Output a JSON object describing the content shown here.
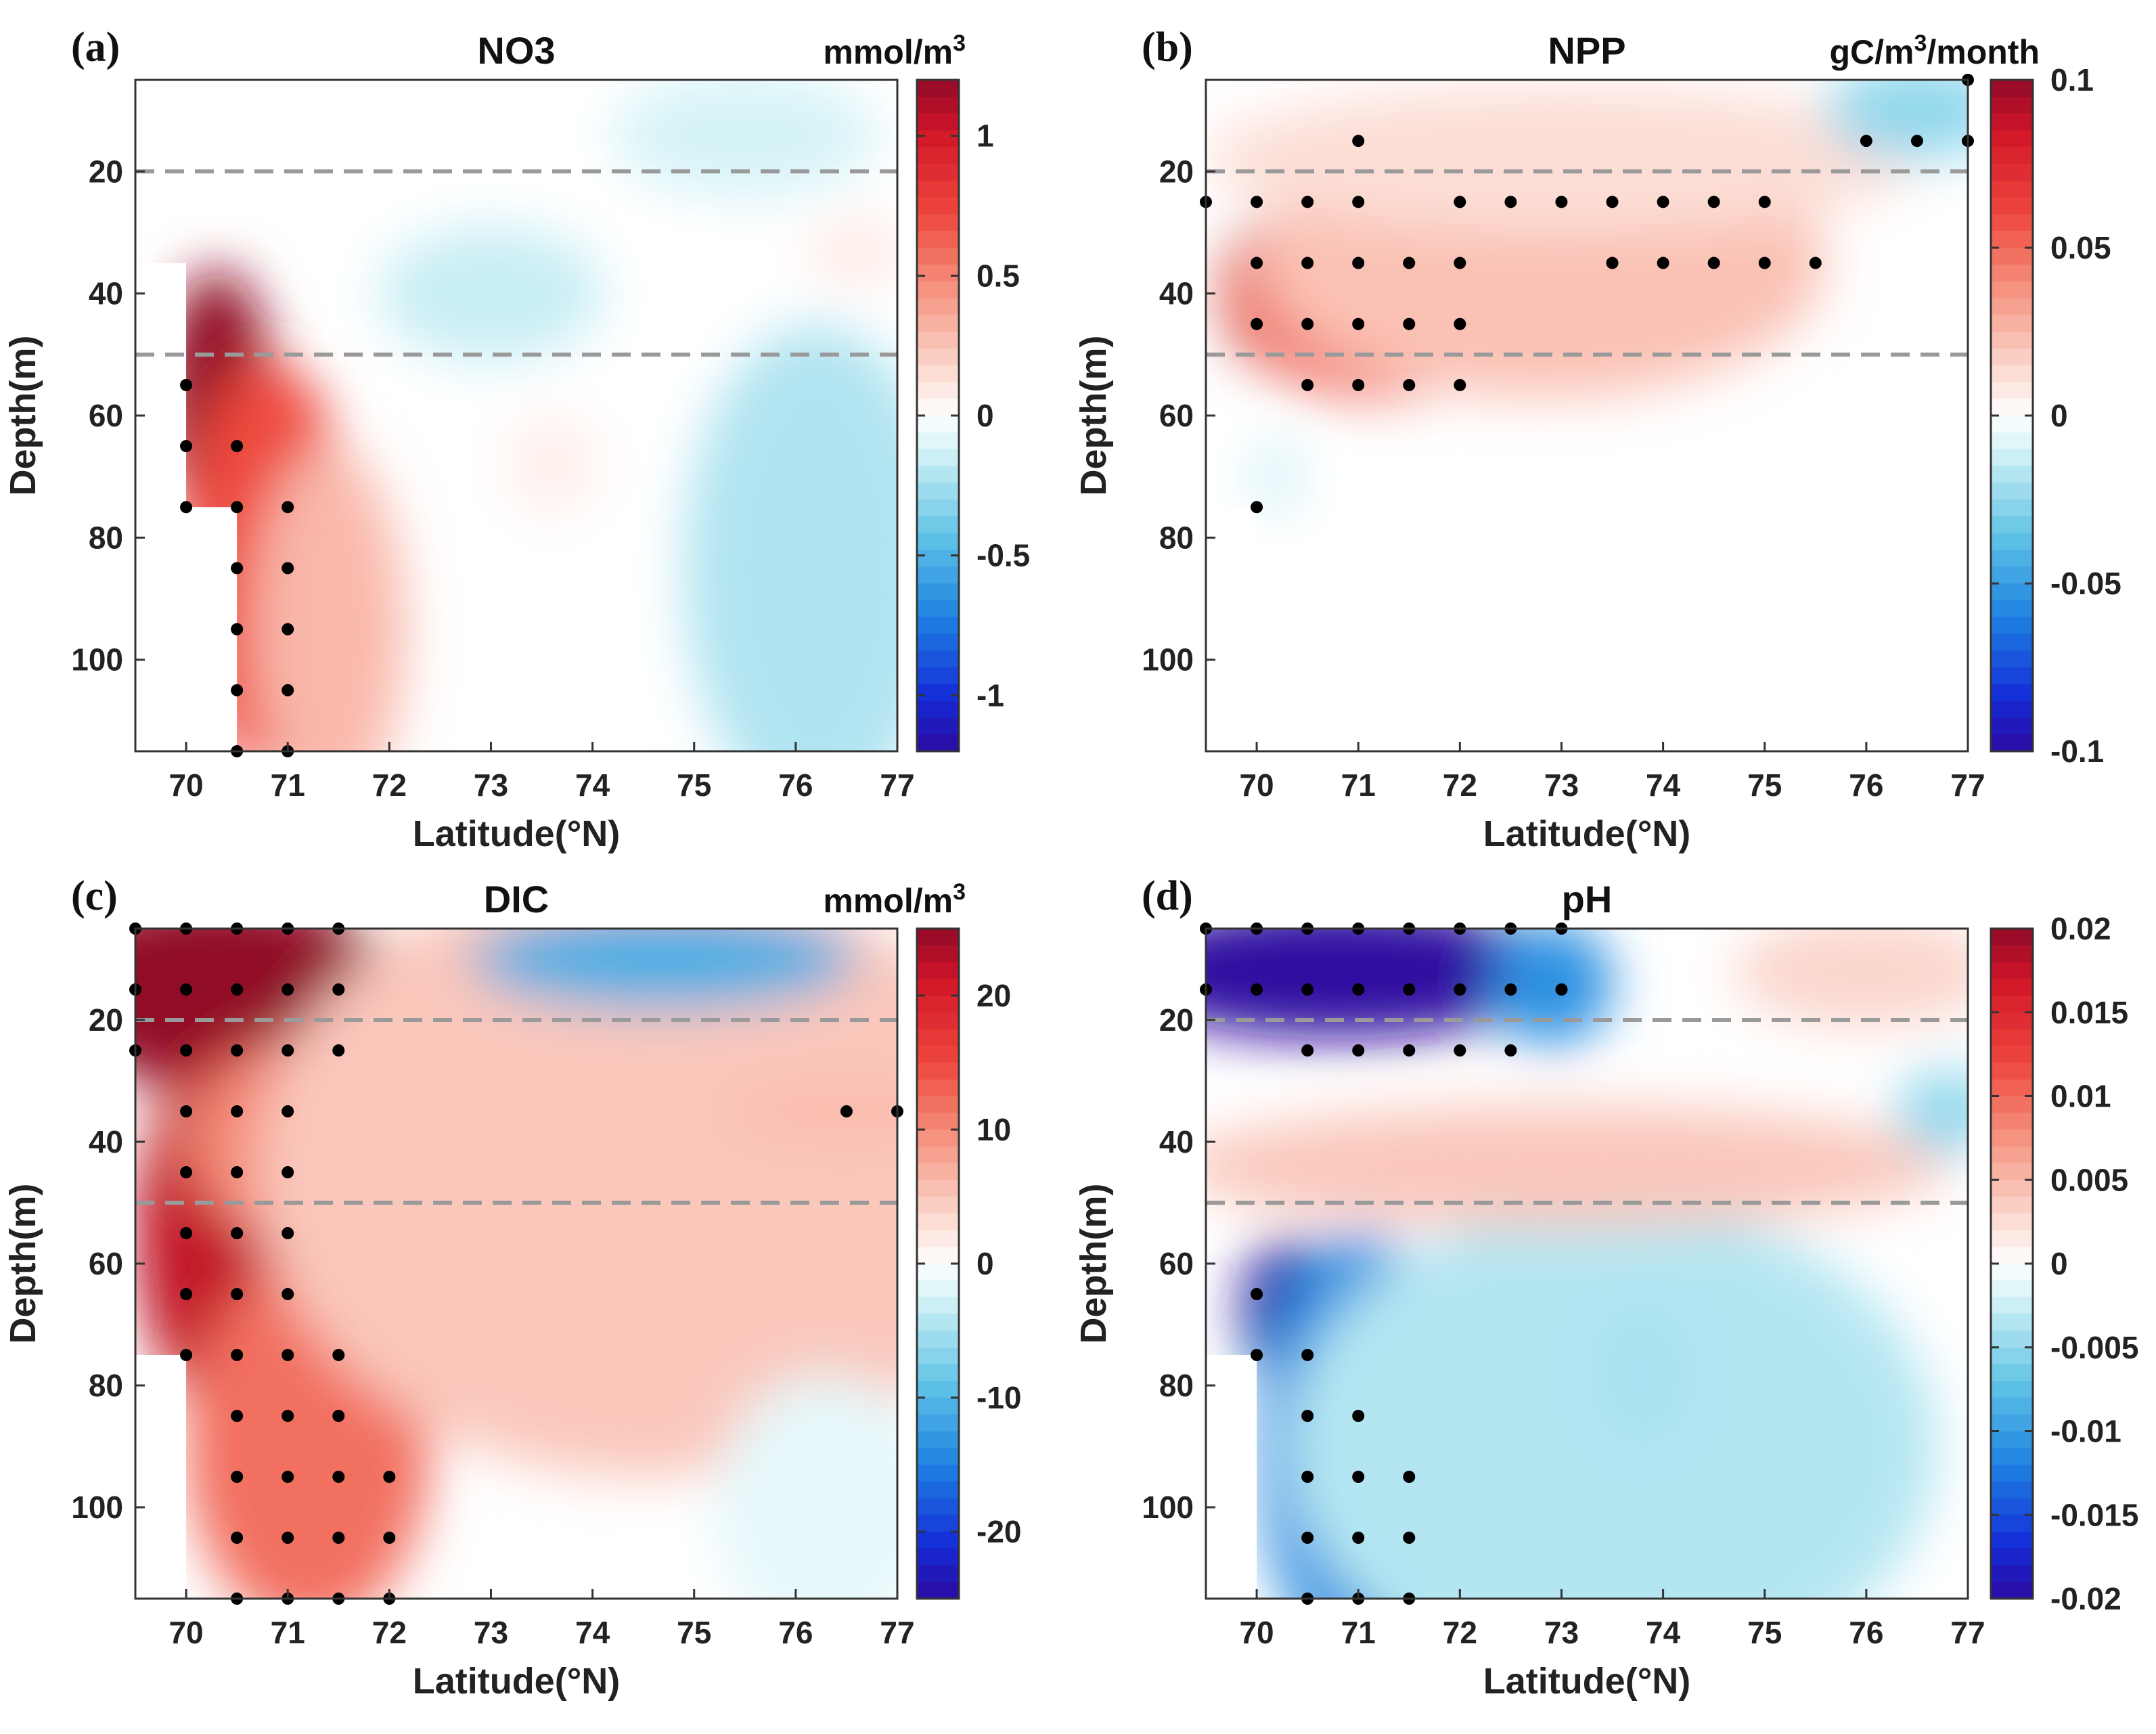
{
  "chart_data": [
    {
      "type": "heatmap",
      "panel": "(a)",
      "title": "NO3",
      "unit": "mmol/m",
      "unit_sup": "3",
      "unit_tail": "",
      "xlabel": "Latitude(°N)",
      "ylabel": "Depth(m)",
      "xlim": [
        69.5,
        77
      ],
      "ylim": [
        5,
        115
      ],
      "y_reversed": true,
      "xticks": [
        70,
        71,
        72,
        73,
        74,
        75,
        76,
        77
      ],
      "yticks": [
        20,
        40,
        60,
        80,
        100
      ],
      "clim": [
        -1.2,
        1.2
      ],
      "cticks": [
        1,
        0.5,
        0,
        -0.5,
        -1
      ],
      "colormap": "blue-white-red",
      "dashed_depths": [
        20,
        50
      ],
      "mask_steps": [
        [
          5,
          69.5
        ],
        [
          35,
          70
        ],
        [
          75,
          70.5
        ]
      ],
      "blobs": [
        {
          "lat": 70.3,
          "depth": 58,
          "rx": 0.55,
          "ry": 22,
          "value": 1.25
        },
        {
          "lat": 70.8,
          "depth": 85,
          "rx": 0.85,
          "ry": 34,
          "value": 0.72
        },
        {
          "lat": 71.4,
          "depth": 95,
          "rx": 0.75,
          "ry": 30,
          "value": 0.3
        },
        {
          "lat": 73.0,
          "depth": 40,
          "rx": 1.1,
          "ry": 11,
          "value": -0.16
        },
        {
          "lat": 75.5,
          "depth": 14,
          "rx": 1.3,
          "ry": 10,
          "value": -0.12
        },
        {
          "lat": 76.2,
          "depth": 85,
          "rx": 1.3,
          "ry": 40,
          "value": -0.22
        },
        {
          "lat": 73.6,
          "depth": 68,
          "rx": 0.45,
          "ry": 8,
          "value": 0.07
        },
        {
          "lat": 76.6,
          "depth": 33,
          "rx": 0.45,
          "ry": 5,
          "value": 0.1
        }
      ],
      "significance_points": [
        [
          70,
          55
        ],
        [
          70,
          65
        ],
        [
          70,
          75
        ],
        [
          70.5,
          65
        ],
        [
          70.5,
          75
        ],
        [
          70.5,
          85
        ],
        [
          70.5,
          95
        ],
        [
          70.5,
          105
        ],
        [
          70.5,
          115
        ],
        [
          71,
          75
        ],
        [
          71,
          85
        ],
        [
          71,
          95
        ],
        [
          71,
          105
        ],
        [
          71,
          115
        ]
      ]
    },
    {
      "type": "heatmap",
      "panel": "(b)",
      "title": "NPP",
      "unit": "gC/m",
      "unit_sup": "3",
      "unit_tail": "/month",
      "xlabel": "Latitude(°N)",
      "ylabel": "Depth(m)",
      "xlim": [
        69.5,
        77
      ],
      "ylim": [
        5,
        115
      ],
      "y_reversed": true,
      "xticks": [
        70,
        71,
        72,
        73,
        74,
        75,
        76,
        77
      ],
      "yticks": [
        20,
        40,
        60,
        80,
        100
      ],
      "clim": [
        -0.1,
        0.1
      ],
      "cticks": [
        0.1,
        0.05,
        0,
        -0.05,
        -0.1
      ],
      "colormap": "blue-white-red",
      "dashed_depths": [
        20,
        50
      ],
      "mask_steps": [
        [
          25,
          69.5
        ],
        [
          75,
          70
        ]
      ],
      "blobs": [
        {
          "lat": 70.2,
          "depth": 40,
          "rx": 0.55,
          "ry": 12,
          "value": 0.11
        },
        {
          "lat": 71.2,
          "depth": 40,
          "rx": 1.5,
          "ry": 17,
          "value": 0.05
        },
        {
          "lat": 72.8,
          "depth": 35,
          "rx": 2.8,
          "ry": 22,
          "value": 0.022
        },
        {
          "lat": 73.0,
          "depth": 18,
          "rx": 3.5,
          "ry": 12,
          "value": 0.012
        },
        {
          "lat": 76.5,
          "depth": 10,
          "rx": 0.9,
          "ry": 8,
          "value": -0.025
        },
        {
          "lat": 70.2,
          "depth": 70,
          "rx": 0.25,
          "ry": 6,
          "value": -0.01
        }
      ],
      "significance_points": [
        [
          69.5,
          25
        ],
        [
          70,
          25
        ],
        [
          70.5,
          25
        ],
        [
          71,
          25
        ],
        [
          72,
          25
        ],
        [
          72.5,
          25
        ],
        [
          73,
          25
        ],
        [
          73.5,
          25
        ],
        [
          74,
          25
        ],
        [
          74.5,
          25
        ],
        [
          75,
          25
        ],
        [
          70,
          35
        ],
        [
          70.5,
          35
        ],
        [
          71,
          35
        ],
        [
          71.5,
          35
        ],
        [
          72,
          35
        ],
        [
          73.5,
          35
        ],
        [
          74,
          35
        ],
        [
          74.5,
          35
        ],
        [
          75,
          35
        ],
        [
          75.5,
          35
        ],
        [
          70,
          45
        ],
        [
          70.5,
          45
        ],
        [
          71,
          45
        ],
        [
          71.5,
          45
        ],
        [
          72,
          45
        ],
        [
          70.5,
          55
        ],
        [
          71,
          55
        ],
        [
          71.5,
          55
        ],
        [
          72,
          55
        ],
        [
          71,
          15
        ],
        [
          76,
          15
        ],
        [
          76.5,
          15
        ],
        [
          77,
          15
        ],
        [
          77,
          5
        ],
        [
          70,
          75
        ]
      ]
    },
    {
      "type": "heatmap",
      "panel": "(c)",
      "title": "DIC",
      "unit": "mmol/m",
      "unit_sup": "3",
      "unit_tail": "",
      "xlabel": "Latitude(°N)",
      "ylabel": "Depth(m)",
      "xlim": [
        69.5,
        77
      ],
      "ylim": [
        5,
        115
      ],
      "y_reversed": true,
      "xticks": [
        70,
        71,
        72,
        73,
        74,
        75,
        76,
        77
      ],
      "yticks": [
        20,
        40,
        60,
        80,
        100
      ],
      "clim": [
        -25,
        25
      ],
      "cticks": [
        20,
        10,
        0,
        -10,
        -20
      ],
      "colormap": "blue-white-red",
      "dashed_depths": [
        20,
        50
      ],
      "mask_steps": [
        [
          25,
          69.5
        ],
        [
          75,
          70
        ]
      ],
      "blobs": [
        {
          "lat": 70.3,
          "depth": 15,
          "rx": 1.8,
          "ry": 16,
          "value": 30
        },
        {
          "lat": 70.4,
          "depth": 55,
          "rx": 0.9,
          "ry": 30,
          "value": 22
        },
        {
          "lat": 71.2,
          "depth": 90,
          "rx": 1.2,
          "ry": 30,
          "value": 12
        },
        {
          "lat": 72.0,
          "depth": 40,
          "rx": 2.0,
          "ry": 20,
          "value": 10
        },
        {
          "lat": 74.5,
          "depth": 45,
          "rx": 3.8,
          "ry": 50,
          "value": 5
        },
        {
          "lat": 76.5,
          "depth": 35,
          "rx": 1.2,
          "ry": 5,
          "value": 6
        },
        {
          "lat": 74.7,
          "depth": 10,
          "rx": 1.9,
          "ry": 8,
          "value": -11
        },
        {
          "lat": 76.3,
          "depth": 100,
          "rx": 1.1,
          "ry": 22,
          "value": -1.5
        }
      ],
      "significance_points": [
        [
          69.5,
          5
        ],
        [
          70,
          5
        ],
        [
          70.5,
          5
        ],
        [
          71,
          5
        ],
        [
          71.5,
          5
        ],
        [
          69.5,
          15
        ],
        [
          70,
          15
        ],
        [
          70.5,
          15
        ],
        [
          71,
          15
        ],
        [
          71.5,
          15
        ],
        [
          69.5,
          25
        ],
        [
          70,
          25
        ],
        [
          70.5,
          25
        ],
        [
          71,
          25
        ],
        [
          71.5,
          25
        ],
        [
          70,
          35
        ],
        [
          70.5,
          35
        ],
        [
          71,
          35
        ],
        [
          70,
          45
        ],
        [
          70.5,
          45
        ],
        [
          71,
          45
        ],
        [
          70,
          55
        ],
        [
          70.5,
          55
        ],
        [
          71,
          55
        ],
        [
          70,
          65
        ],
        [
          70.5,
          65
        ],
        [
          71,
          65
        ],
        [
          70,
          75
        ],
        [
          70.5,
          75
        ],
        [
          71,
          75
        ],
        [
          71.5,
          75
        ],
        [
          70.5,
          85
        ],
        [
          71,
          85
        ],
        [
          71.5,
          85
        ],
        [
          70.5,
          95
        ],
        [
          71,
          95
        ],
        [
          71.5,
          95
        ],
        [
          72,
          95
        ],
        [
          70.5,
          105
        ],
        [
          71,
          105
        ],
        [
          71.5,
          105
        ],
        [
          72,
          105
        ],
        [
          70.5,
          115
        ],
        [
          71,
          115
        ],
        [
          71.5,
          115
        ],
        [
          72,
          115
        ],
        [
          76.5,
          35
        ],
        [
          77,
          35
        ]
      ]
    },
    {
      "type": "heatmap",
      "panel": "(d)",
      "title": "pH",
      "unit": "",
      "unit_sup": "",
      "unit_tail": "",
      "xlabel": "Latitude(°N)",
      "ylabel": "Depth(m)",
      "xlim": [
        69.5,
        77
      ],
      "ylim": [
        5,
        115
      ],
      "y_reversed": true,
      "xticks": [
        70,
        71,
        72,
        73,
        74,
        75,
        76,
        77
      ],
      "yticks": [
        20,
        40,
        60,
        80,
        100
      ],
      "clim": [
        -0.02,
        0.02
      ],
      "cticks": [
        0.02,
        0.015,
        0.01,
        0.005,
        0,
        -0.005,
        -0.01,
        -0.015,
        -0.02
      ],
      "colormap": "blue-white-red",
      "dashed_depths": [
        20,
        50
      ],
      "mask_steps": [
        [
          25,
          69.5
        ],
        [
          75,
          70
        ],
        [
          115,
          70.5
        ]
      ],
      "blobs": [
        {
          "lat": 70.8,
          "depth": 12,
          "rx": 2.2,
          "ry": 11,
          "value": -0.03
        },
        {
          "lat": 72.9,
          "depth": 14,
          "rx": 0.6,
          "ry": 10,
          "value": -0.011
        },
        {
          "lat": 70.3,
          "depth": 68,
          "rx": 0.45,
          "ry": 12,
          "value": -0.025
        },
        {
          "lat": 71.0,
          "depth": 90,
          "rx": 1.0,
          "ry": 35,
          "value": -0.011
        },
        {
          "lat": 73.5,
          "depth": 90,
          "rx": 3.2,
          "ry": 40,
          "value": -0.0035
        },
        {
          "lat": 73.8,
          "depth": 78,
          "rx": 0.5,
          "ry": 12,
          "value": -0.004
        },
        {
          "lat": 73.0,
          "depth": 44,
          "rx": 3.8,
          "ry": 10,
          "value": 0.004
        },
        {
          "lat": 76.0,
          "depth": 12,
          "rx": 1.3,
          "ry": 9,
          "value": 0.003
        },
        {
          "lat": 76.8,
          "depth": 35,
          "rx": 0.5,
          "ry": 7,
          "value": -0.005
        }
      ],
      "significance_points": [
        [
          69.5,
          5
        ],
        [
          70,
          5
        ],
        [
          70.5,
          5
        ],
        [
          71,
          5
        ],
        [
          71.5,
          5
        ],
        [
          72,
          5
        ],
        [
          72.5,
          5
        ],
        [
          73,
          5
        ],
        [
          69.5,
          15
        ],
        [
          70,
          15
        ],
        [
          70.5,
          15
        ],
        [
          71,
          15
        ],
        [
          71.5,
          15
        ],
        [
          72,
          15
        ],
        [
          72.5,
          15
        ],
        [
          73,
          15
        ],
        [
          70.5,
          25
        ],
        [
          71,
          25
        ],
        [
          71.5,
          25
        ],
        [
          72,
          25
        ],
        [
          72.5,
          25
        ],
        [
          70,
          65
        ],
        [
          70,
          75
        ],
        [
          70.5,
          75
        ],
        [
          70.5,
          85
        ],
        [
          71,
          85
        ],
        [
          70.5,
          95
        ],
        [
          71,
          95
        ],
        [
          71.5,
          95
        ],
        [
          70.5,
          105
        ],
        [
          71,
          105
        ],
        [
          71.5,
          105
        ],
        [
          70.5,
          115
        ],
        [
          71,
          115
        ],
        [
          71.5,
          115
        ]
      ]
    }
  ]
}
